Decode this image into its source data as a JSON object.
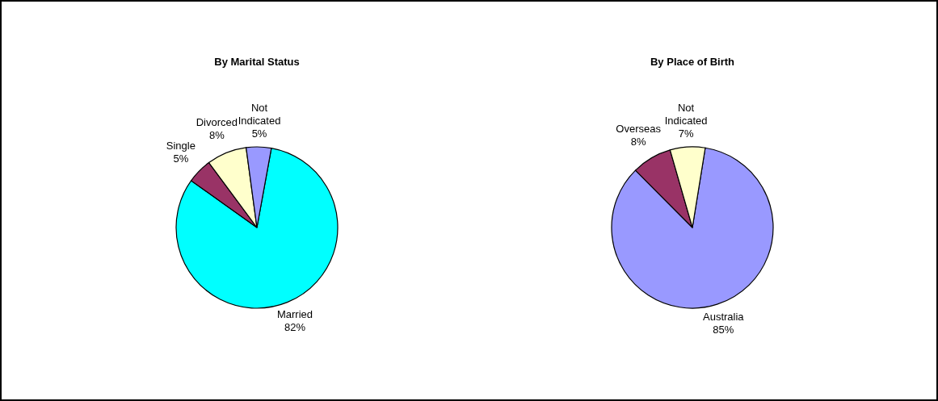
{
  "chart_data": [
    {
      "type": "pie",
      "title": "By Marital Status",
      "categories": [
        "Married",
        "Single",
        "Divorced",
        "Not Indicated"
      ],
      "values": [
        82,
        5,
        8,
        5
      ],
      "value_labels": [
        "82%",
        "5%",
        "8%",
        "5%"
      ],
      "colors": [
        "#00ffff",
        "#993366",
        "#ffffcc",
        "#9999ff"
      ]
    },
    {
      "type": "pie",
      "title": "By Place of Birth",
      "categories": [
        "Australia",
        "Overseas",
        "Not Indicated"
      ],
      "values": [
        85,
        8,
        7
      ],
      "value_labels": [
        "85%",
        "8%",
        "7%"
      ],
      "colors": [
        "#9999ff",
        "#993366",
        "#ffffcc"
      ]
    }
  ]
}
